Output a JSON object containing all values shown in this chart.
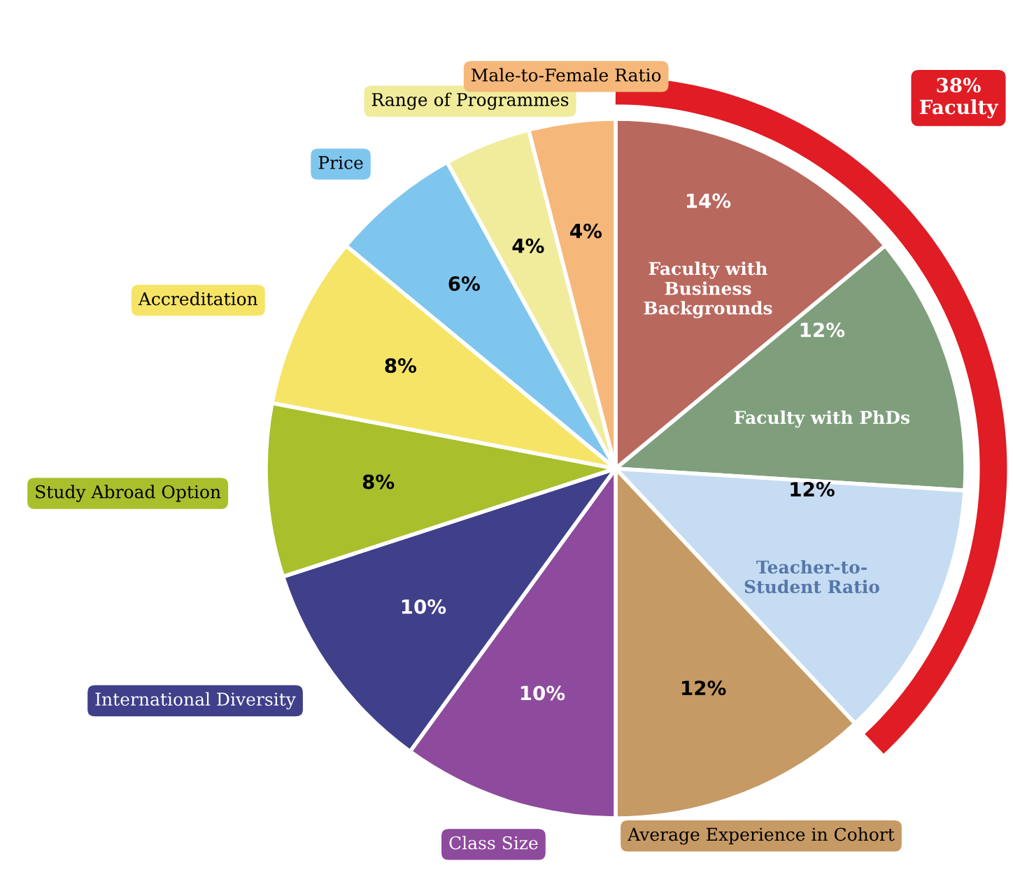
{
  "chart_data": {
    "type": "pie",
    "categories": [
      "Faculty with\nBusiness\nBackgrounds",
      "Faculty with PhDs",
      "Teacher-to-\nStudent Ratio",
      "Average Experience in Cohort",
      "Class Size",
      "International Diversity",
      "Study Abroad Option",
      "Accreditation",
      "Price",
      "Range of Programmes",
      "Male-to-Female Ratio"
    ],
    "values": [
      14,
      12,
      12,
      12,
      10,
      10,
      8,
      8,
      6,
      4,
      4
    ],
    "value_labels": [
      "14%",
      "12%",
      "12%",
      "12%",
      "10%",
      "10%",
      "8%",
      "8%",
      "6%",
      "4%",
      "4%"
    ],
    "colors": [
      "#b9685e",
      "#7f9f7c",
      "#c6dcf2",
      "#c69a64",
      "#8e4a9c",
      "#3f3f8a",
      "#a9bf2c",
      "#f6e466",
      "#7fc6ee",
      "#f1ec9c",
      "#f5b87a"
    ],
    "legend": false,
    "annotations": [
      "38%\nFaculty"
    ]
  }
}
